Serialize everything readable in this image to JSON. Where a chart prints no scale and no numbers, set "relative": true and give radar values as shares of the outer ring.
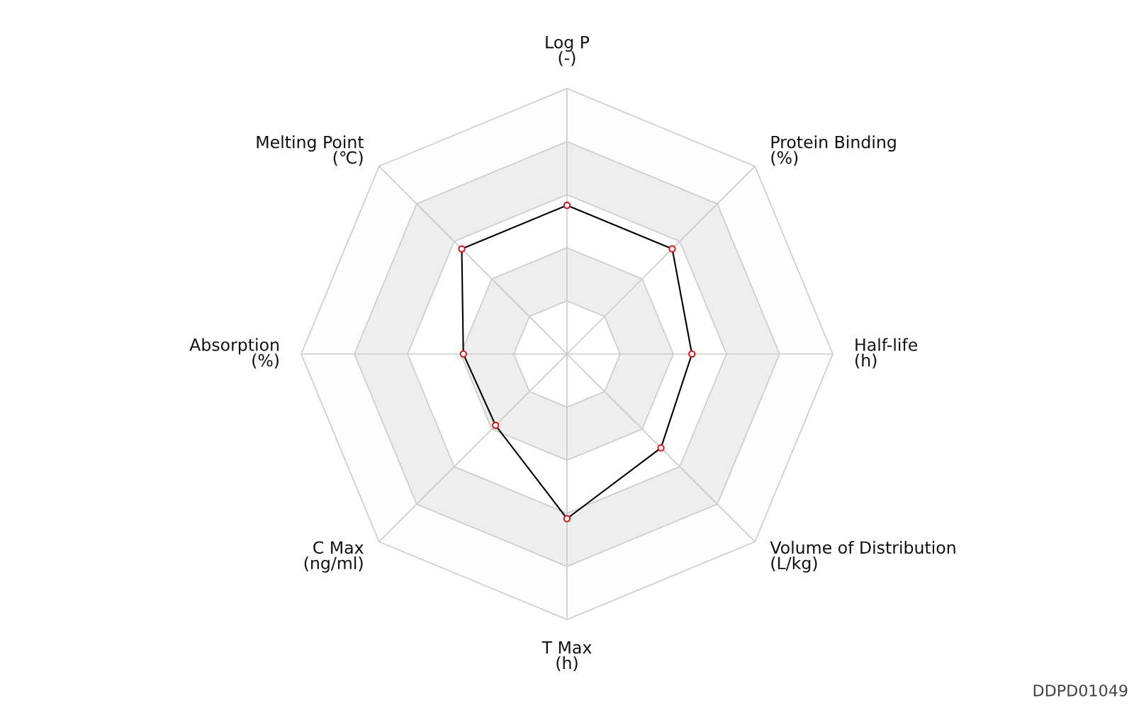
{
  "chart_data": {
    "type": "radar",
    "relative": true,
    "categories": [
      "Log P\n(-)",
      "Protein Binding\n(%)",
      "Half-life\n(h)",
      "Volume of Distribution\n(L/kg)",
      "T Max\n(h)",
      "C Max\n(ng/ml)",
      "Absorption\n(%)",
      "Melting Point\n(℃)"
    ],
    "series": [
      {
        "color": "#000000",
        "values": [
          0.56,
          0.56,
          0.47,
          0.5,
          0.62,
          0.38,
          0.39,
          0.56
        ]
      }
    ],
    "marker": "circle",
    "grid": true,
    "annotations": [
      "DDPD01049"
    ]
  }
}
